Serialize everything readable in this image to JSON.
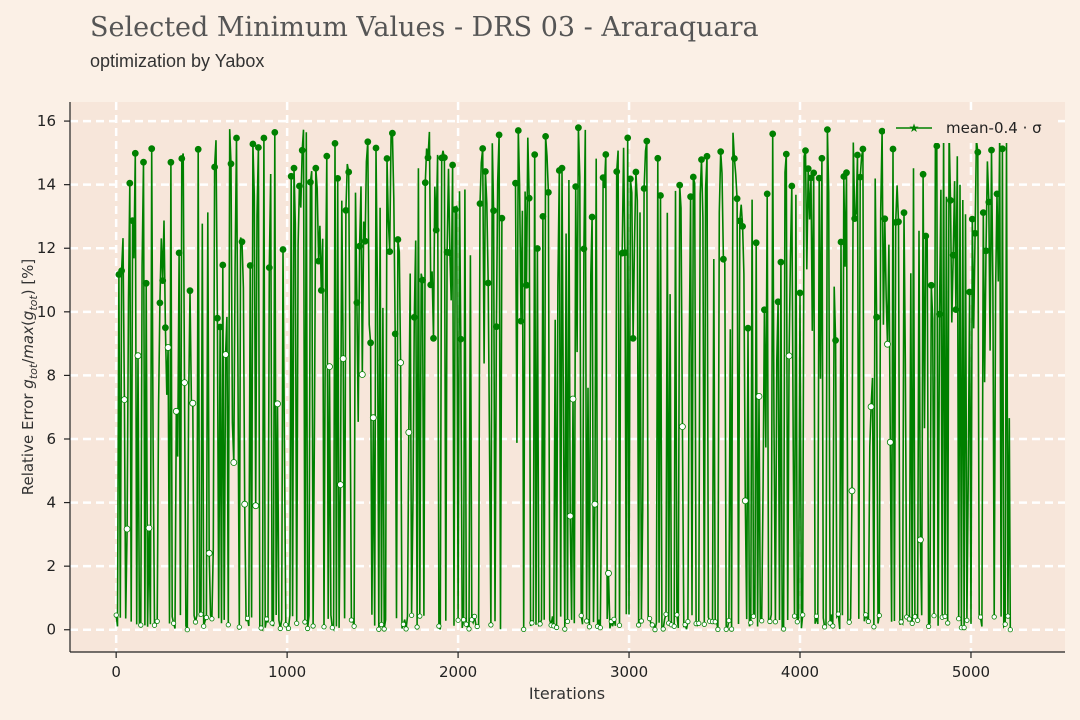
{
  "header": {
    "title": "Selected Minimum Values - DRS 03 - Araraquara",
    "subtitle": "optimization by Yabox"
  },
  "chart_data": {
    "type": "line",
    "xlabel": "Iterations",
    "ylabel": "Relative Error g_tot/max(g_tot) [%]",
    "xlim": [
      -270,
      5550
    ],
    "ylim": [
      -0.7,
      16.6
    ],
    "xticks": [
      "0",
      "1000",
      "2000",
      "3000",
      "4000",
      "5000"
    ],
    "yticks": [
      "0",
      "2",
      "4",
      "6",
      "8",
      "10",
      "12",
      "14",
      "16"
    ],
    "grid": true,
    "legend_position": "top-right",
    "series": [
      {
        "name": "mean-0.4 · σ",
        "color": "#008000",
        "marker": "star",
        "x_range": [
          0,
          5230
        ],
        "n_points": 5231,
        "gap_x_range": [
          2260,
          2330
        ],
        "max_value": 15.8,
        "min_value": 0,
        "final_value": 0
      }
    ]
  },
  "colors": {
    "background": "#fbf0e6",
    "plot_background": "#f7e6da",
    "series": "#008000",
    "grid": "#ffffff"
  }
}
